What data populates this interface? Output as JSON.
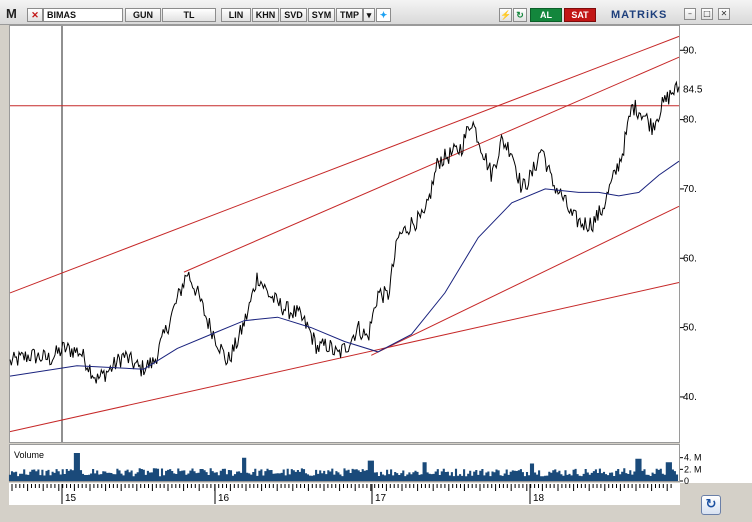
{
  "toolbar": {
    "symbol": "BIMAS",
    "period": "GUN",
    "currency": "TL",
    "scale": "LIN",
    "buttons": [
      "KHN",
      "SVD",
      "SYM",
      "TMP"
    ],
    "buy_label": "AL",
    "sell_label": "SAT",
    "brand": "MATRiKS"
  },
  "volume_panel": {
    "title": "Volume",
    "y_ticks": [
      "4. M",
      "2. M",
      "0"
    ]
  },
  "colors": {
    "price": "#000000",
    "moving_average": "#1a237e",
    "trendlines": "#c62828",
    "volume": "#1a4a7a",
    "buy": "#13863c",
    "sell": "#c21616"
  },
  "chart_data": {
    "type": "line",
    "symbol": "BIMAS",
    "y_ticks": [
      40,
      50,
      60,
      70,
      80,
      90
    ],
    "ylim": [
      33.5,
      93.5
    ],
    "last_price_label": "84.5",
    "x_ticks": [
      "15",
      "16",
      "17",
      "18"
    ],
    "series": [
      {
        "name": "",
        "color": "#000000",
        "x": [
          0,
          0.03,
          0.06,
          0.08,
          0.105,
          0.13,
          0.15,
          0.17,
          0.195,
          0.215,
          0.235,
          0.25,
          0.265,
          0.28,
          0.295,
          0.31,
          0.325,
          0.34,
          0.355,
          0.37,
          0.385,
          0.4,
          0.415,
          0.43,
          0.445,
          0.46,
          0.475,
          0.49,
          0.505,
          0.52,
          0.535,
          0.55,
          0.565,
          0.58,
          0.6,
          0.62,
          0.64,
          0.66,
          0.675,
          0.69,
          0.705,
          0.72,
          0.735,
          0.75,
          0.765,
          0.78,
          0.795,
          0.81,
          0.825,
          0.84,
          0.855,
          0.87,
          0.885,
          0.9,
          0.915,
          0.93,
          0.945,
          0.96,
          0.975,
          0.99,
          1.0
        ],
        "y": [
          45,
          46,
          45.5,
          47,
          46.5,
          42.5,
          44,
          46,
          44,
          45,
          50,
          54,
          58,
          55,
          51,
          48,
          45,
          48,
          52,
          57.5,
          55,
          53.5,
          52.5,
          52,
          50,
          47,
          47.5,
          46,
          47.5,
          50,
          48.5,
          55,
          54.5,
          63,
          65,
          66,
          74,
          75,
          76,
          80,
          76,
          72,
          77,
          75.5,
          70,
          72,
          76,
          71,
          69,
          66,
          65,
          65,
          67,
          71,
          75,
          82,
          81,
          79,
          82,
          84,
          84.5
        ]
      },
      {
        "name": "",
        "color": "#1a237e",
        "x": [
          0,
          0.1,
          0.2,
          0.25,
          0.3,
          0.35,
          0.4,
          0.45,
          0.5,
          0.55,
          0.6,
          0.65,
          0.7,
          0.75,
          0.8,
          0.85,
          0.88,
          0.91,
          0.94,
          0.97,
          1.0
        ],
        "y": [
          43,
          44.5,
          44,
          47,
          49,
          51,
          51.5,
          50,
          48,
          46.5,
          49,
          55,
          63,
          68,
          70,
          69.5,
          69.5,
          69,
          69.5,
          72,
          74
        ]
      }
    ],
    "trendlines": [
      {
        "from": [
          0,
          35
        ],
        "to": [
          1,
          56.5
        ]
      },
      {
        "from": [
          0.54,
          46
        ],
        "to": [
          1,
          67.5
        ]
      },
      {
        "from": [
          0,
          55
        ],
        "to": [
          1,
          92
        ]
      },
      {
        "from": [
          0.26,
          58
        ],
        "to": [
          1,
          89
        ]
      },
      {
        "from": [
          0,
          82
        ],
        "to": [
          1,
          82
        ]
      }
    ],
    "volume": {
      "ylim": [
        0,
        6
      ],
      "spikes": [
        [
          0.1,
          4.8
        ],
        [
          0.35,
          4.0
        ],
        [
          0.54,
          3.5
        ],
        [
          0.62,
          3.2
        ],
        [
          0.78,
          3.0
        ],
        [
          0.94,
          3.8
        ],
        [
          0.985,
          3.2
        ]
      ]
    }
  }
}
